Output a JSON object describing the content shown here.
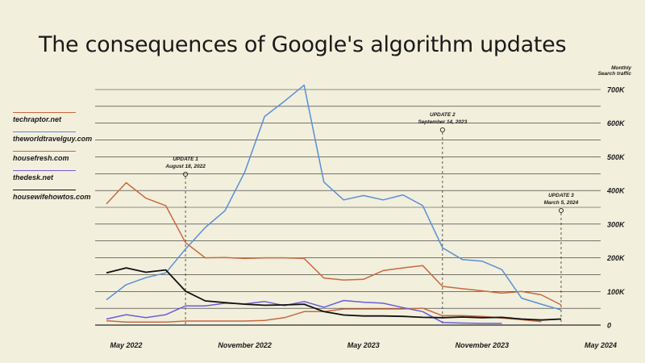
{
  "title": "The consequences of Google's algorithm updates",
  "chart_data": {
    "type": "line",
    "title": "The consequences of Google's algorithm updates",
    "ylabel": "Monthly Search traffic",
    "ylim": [
      0,
      700000
    ],
    "yticks": [
      {
        "value": 0,
        "label": "0"
      },
      {
        "value": 100000,
        "label": "100K"
      },
      {
        "value": 200000,
        "label": "200K"
      },
      {
        "value": 300000,
        "label": "300K"
      },
      {
        "value": 400000,
        "label": "400K"
      },
      {
        "value": 500000,
        "label": "500K"
      },
      {
        "value": 600000,
        "label": "600K"
      },
      {
        "value": 700000,
        "label": "700K"
      }
    ],
    "x": [
      "2022-04",
      "2022-05",
      "2022-06",
      "2022-07",
      "2022-08",
      "2022-09",
      "2022-10",
      "2022-11",
      "2022-12",
      "2023-01",
      "2023-02",
      "2023-03",
      "2023-04",
      "2023-05",
      "2023-06",
      "2023-07",
      "2023-08",
      "2023-09",
      "2023-10",
      "2023-11",
      "2023-12",
      "2024-01",
      "2024-02",
      "2024-03",
      "2024-04",
      "2024-05"
    ],
    "xticks": [
      {
        "x": "2022-05",
        "label": "May 2022"
      },
      {
        "x": "2022-11",
        "label": "November 2022"
      },
      {
        "x": "2023-05",
        "label": "May 2023"
      },
      {
        "x": "2023-11",
        "label": "November 2023"
      },
      {
        "x": "2024-05",
        "label": "May 2024"
      }
    ],
    "series": [
      {
        "name": "techraptor.net",
        "color": "#c8693e",
        "values": [
          360000,
          423000,
          377000,
          355000,
          245000,
          200000,
          201000,
          198000,
          200000,
          200000,
          198000,
          140000,
          134000,
          136000,
          162000,
          170000,
          177000,
          115000,
          108000,
          102000,
          95000,
          100000,
          90000,
          60000,
          null,
          null
        ]
      },
      {
        "name": "theworldtravelguy.com",
        "color": "#5a8fd8",
        "values": [
          75000,
          120000,
          141000,
          155000,
          226000,
          290000,
          340000,
          455000,
          620000,
          665000,
          713000,
          425000,
          372000,
          385000,
          372000,
          387000,
          355000,
          230000,
          195000,
          190000,
          165000,
          80000,
          62000,
          45000,
          null,
          null
        ]
      },
      {
        "name": "housefresh.com",
        "color": "#c8693e",
        "values": [
          13000,
          9000,
          9000,
          9000,
          12000,
          12000,
          12000,
          12000,
          14000,
          22000,
          40000,
          40000,
          48000,
          48000,
          48000,
          48000,
          50000,
          28000,
          28000,
          26000,
          21000,
          16000,
          10000,
          null,
          null,
          null
        ]
      },
      {
        "name": "thedesk.net",
        "color": "#6a5fd8",
        "values": [
          18000,
          31000,
          22000,
          31000,
          57000,
          57000,
          65000,
          63000,
          70000,
          58000,
          70000,
          53000,
          73000,
          68000,
          65000,
          52000,
          40000,
          8000,
          6000,
          5000,
          5000,
          null,
          null,
          null,
          null,
          null
        ]
      },
      {
        "name": "housewifehowtos.com",
        "color": "#111111",
        "values": [
          155000,
          170000,
          157000,
          164000,
          101000,
          72000,
          67000,
          62000,
          59000,
          60000,
          62000,
          40000,
          30000,
          27000,
          27000,
          26000,
          23000,
          22000,
          24000,
          22000,
          23000,
          18000,
          15000,
          18000,
          null,
          null
        ]
      }
    ],
    "annotations": [
      {
        "title": "UPDATE 1",
        "subtitle": "August 18, 2022",
        "x": "2022-08"
      },
      {
        "title": "UPDATE 2",
        "subtitle": "September 14, 2023",
        "x": "2023-09"
      },
      {
        "title": "UPDATE 3",
        "subtitle": "March 5, 2024",
        "x": "2024-03"
      }
    ],
    "grid": true,
    "legend_position": "left"
  }
}
